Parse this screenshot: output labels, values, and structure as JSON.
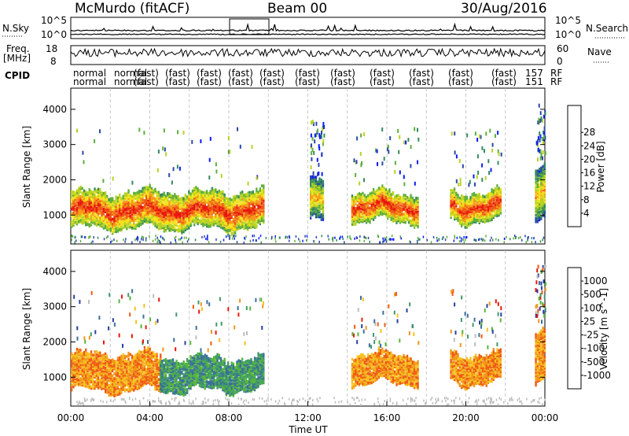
{
  "header": {
    "station": "McMurdo (fitACF)",
    "beam": "Beam 00",
    "date": "30/Aug/2016"
  },
  "noise_panel": {
    "left_label": "N.Sky",
    "right_label": "N.Search",
    "left_ticks": [
      "10^5",
      "10^0"
    ],
    "right_ticks": [
      "10^5",
      "10^0"
    ]
  },
  "freq_panel": {
    "left_label_1": "Freq.",
    "left_label_2": "[MHz]",
    "left_ticks": [
      "18",
      "8"
    ],
    "right_label": "Nave",
    "right_ticks": [
      "60",
      "0"
    ]
  },
  "cpid_row": {
    "label": "CPID",
    "row1": [
      "normal",
      "normal",
      "(fast)",
      "(fast)",
      "(fast)",
      "(fast)",
      "(fast)",
      "(fast)",
      "(fast)",
      "(fast)",
      "(fast)",
      "(fast)",
      "(fast)",
      "157",
      "RF"
    ],
    "row2": [
      "normal",
      "normal",
      "(fast)",
      "(fast)",
      "(fast)",
      "(fast)",
      "(fast)",
      "(fast)",
      "(fast)",
      "(fast)",
      "(fast)",
      "(fast)",
      "(fast)",
      "151",
      "RF"
    ]
  },
  "chart_data": [
    {
      "type": "heatmap",
      "panel": "power",
      "ylabel": "Slant Range [km]",
      "ylim": [
        180,
        4600
      ],
      "yticks": [
        "1000",
        "2000",
        "3000",
        "4000"
      ],
      "xlim_hours": [
        0,
        24
      ],
      "colorbar": {
        "label": "Power [dB]",
        "tick_labels": [
          "4",
          "8",
          "12",
          "16",
          "20",
          "24",
          "28"
        ],
        "colors": [
          "#0a1bff",
          "#2a48a8",
          "#35895c",
          "#5fae3c",
          "#b8d221",
          "#f3e31c",
          "#f59a1a",
          "#ef5a14",
          "#e8170d"
        ]
      },
      "echo_bands": [
        {
          "start_hour": 0.0,
          "end_hour": 9.8,
          "range_low_km": 600,
          "range_high_km": 1700,
          "level": "high"
        },
        {
          "start_hour": 12.1,
          "end_hour": 12.8,
          "range_low_km": 800,
          "range_high_km": 2000,
          "level": "medium"
        },
        {
          "start_hour": 14.2,
          "end_hour": 17.6,
          "range_low_km": 800,
          "range_high_km": 1700,
          "level": "high"
        },
        {
          "start_hour": 19.2,
          "end_hour": 21.8,
          "range_low_km": 800,
          "range_high_km": 1700,
          "level": "high"
        },
        {
          "start_hour": 23.5,
          "end_hour": 24.0,
          "range_low_km": 900,
          "range_high_km": 2400,
          "level": "medium"
        }
      ]
    },
    {
      "type": "heatmap",
      "panel": "velocity",
      "ylabel": "Slant Range [km]",
      "xlabel": "Time UT",
      "ylim": [
        180,
        4600
      ],
      "yticks": [
        "1000",
        "2000",
        "3000",
        "4000"
      ],
      "xticks": [
        "00:00",
        "04:00",
        "08:00",
        "12:00",
        "16:00",
        "20:00",
        "00:00"
      ],
      "xlim_hours": [
        0,
        24
      ],
      "colorbar": {
        "label": "Velocity [m s^-1]",
        "tick_labels": [
          "1000",
          "500",
          "100",
          "25",
          "-25",
          "-100",
          "-500",
          "-1000"
        ],
        "colors": [
          "#2a3f9f",
          "#3a6f9a",
          "#3f9a6a",
          "#55b63a",
          "#bdbdbd",
          "#f7c220",
          "#f0961a",
          "#ef5a14",
          "#e8170d"
        ]
      },
      "echo_bands": [
        {
          "start_hour": 0.0,
          "end_hour": 4.5,
          "range_low_km": 600,
          "range_high_km": 1700,
          "sign": "negative"
        },
        {
          "start_hour": 4.5,
          "end_hour": 9.8,
          "range_low_km": 600,
          "range_high_km": 1600,
          "sign": "positive"
        },
        {
          "start_hour": 14.2,
          "end_hour": 17.6,
          "range_low_km": 800,
          "range_high_km": 1700,
          "sign": "negative"
        },
        {
          "start_hour": 19.2,
          "end_hour": 21.8,
          "range_low_km": 800,
          "range_high_km": 1700,
          "sign": "negative"
        },
        {
          "start_hour": 23.5,
          "end_hour": 24.0,
          "range_low_km": 900,
          "range_high_km": 2400,
          "sign": "negative"
        }
      ]
    }
  ]
}
